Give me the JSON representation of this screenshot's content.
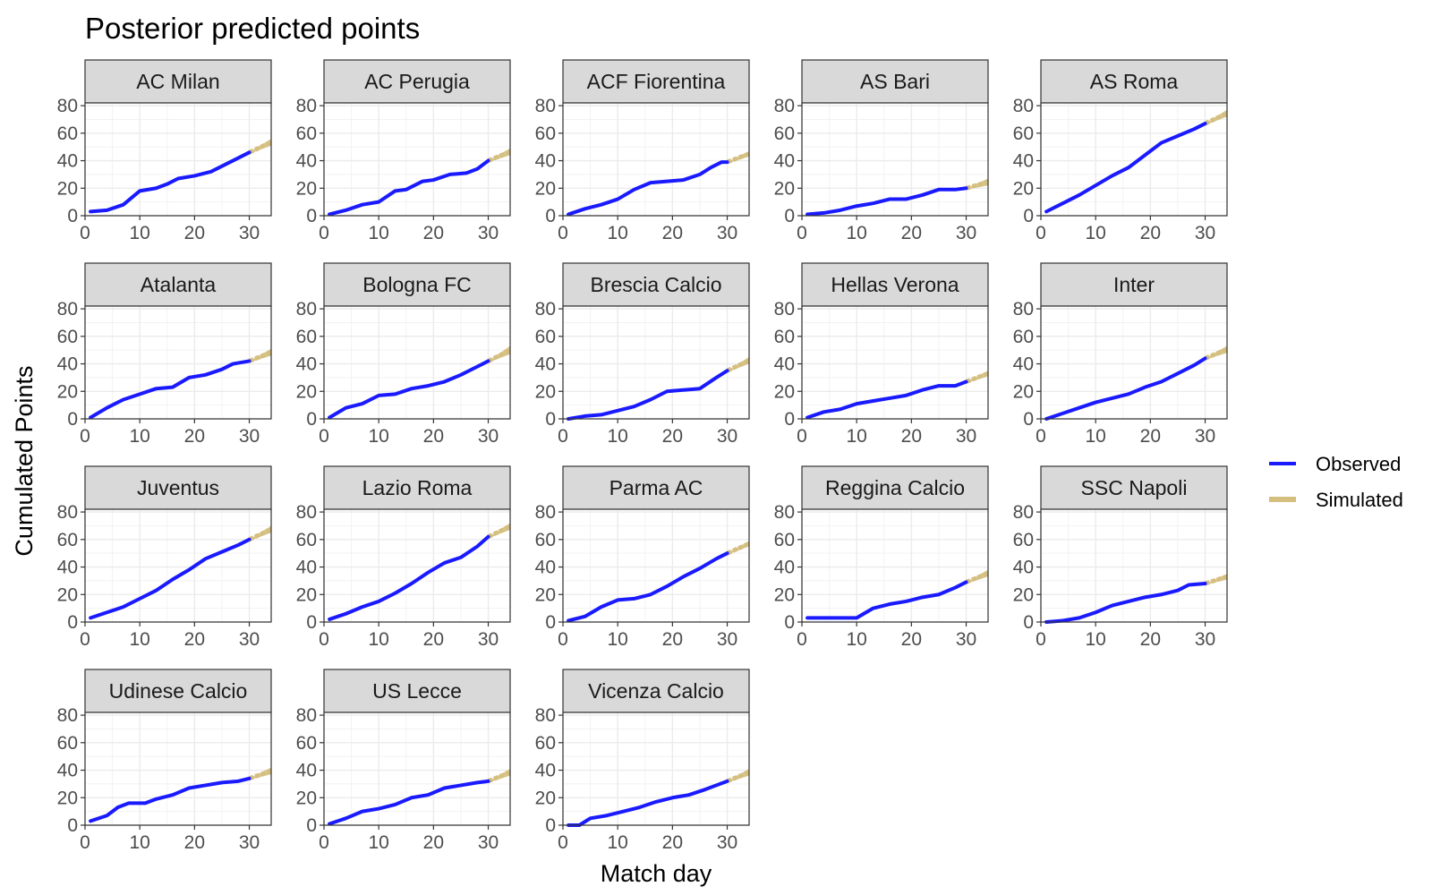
{
  "chart_data": {
    "type": "line",
    "title": "Posterior predicted points",
    "xlabel": "Match day",
    "ylabel": "Cumulated Points",
    "x_ticks": [
      0,
      10,
      20,
      30
    ],
    "y_ticks": [
      0,
      20,
      40,
      60,
      80
    ],
    "xlim": [
      0,
      34
    ],
    "ylim": [
      0,
      82
    ],
    "grid": true,
    "legend": {
      "placement": "right",
      "entries": [
        {
          "name": "Observed",
          "color": "#1a1aff"
        },
        {
          "name": "Simulated",
          "color": "#d4bf7f"
        }
      ]
    },
    "observed_days": [
      1,
      30
    ],
    "simulated_days": [
      30,
      34
    ],
    "facets": [
      {
        "team": "AC Milan",
        "observed": [
          [
            1,
            3
          ],
          [
            4,
            4
          ],
          [
            7,
            8
          ],
          [
            10,
            18
          ],
          [
            13,
            20
          ],
          [
            15,
            23
          ],
          [
            17,
            27
          ],
          [
            20,
            29
          ],
          [
            23,
            32
          ],
          [
            25,
            36
          ],
          [
            27,
            40
          ],
          [
            30,
            46
          ]
        ],
        "simulated_end": [
          51,
          56
        ]
      },
      {
        "team": "AC Perugia",
        "observed": [
          [
            1,
            1
          ],
          [
            4,
            4
          ],
          [
            7,
            8
          ],
          [
            10,
            10
          ],
          [
            13,
            18
          ],
          [
            15,
            19
          ],
          [
            18,
            25
          ],
          [
            20,
            26
          ],
          [
            23,
            30
          ],
          [
            26,
            31
          ],
          [
            28,
            34
          ],
          [
            30,
            40
          ]
        ],
        "simulated_end": [
          44,
          49
        ]
      },
      {
        "team": "ACF Fiorentina",
        "observed": [
          [
            1,
            1
          ],
          [
            4,
            5
          ],
          [
            7,
            8
          ],
          [
            10,
            12
          ],
          [
            13,
            19
          ],
          [
            16,
            24
          ],
          [
            19,
            25
          ],
          [
            22,
            26
          ],
          [
            25,
            30
          ],
          [
            27,
            35
          ],
          [
            29,
            39
          ],
          [
            30,
            39
          ]
        ],
        "simulated_end": [
          43,
          47
        ]
      },
      {
        "team": "AS Bari",
        "observed": [
          [
            1,
            1
          ],
          [
            4,
            2
          ],
          [
            7,
            4
          ],
          [
            10,
            7
          ],
          [
            13,
            9
          ],
          [
            16,
            12
          ],
          [
            19,
            12
          ],
          [
            22,
            15
          ],
          [
            25,
            19
          ],
          [
            28,
            19
          ],
          [
            30,
            20
          ]
        ],
        "simulated_end": [
          22,
          27
        ]
      },
      {
        "team": "AS Roma",
        "observed": [
          [
            1,
            3
          ],
          [
            4,
            9
          ],
          [
            7,
            15
          ],
          [
            10,
            22
          ],
          [
            13,
            29
          ],
          [
            16,
            35
          ],
          [
            19,
            44
          ],
          [
            22,
            53
          ],
          [
            25,
            58
          ],
          [
            28,
            63
          ],
          [
            30,
            67
          ]
        ],
        "simulated_end": [
          72,
          77
        ]
      },
      {
        "team": "Atalanta",
        "observed": [
          [
            1,
            1
          ],
          [
            4,
            8
          ],
          [
            7,
            14
          ],
          [
            10,
            18
          ],
          [
            13,
            22
          ],
          [
            16,
            23
          ],
          [
            19,
            30
          ],
          [
            22,
            32
          ],
          [
            25,
            36
          ],
          [
            27,
            40
          ],
          [
            30,
            42
          ]
        ],
        "simulated_end": [
          46,
          51
        ]
      },
      {
        "team": "Bologna FC",
        "observed": [
          [
            1,
            1
          ],
          [
            4,
            8
          ],
          [
            7,
            11
          ],
          [
            10,
            17
          ],
          [
            13,
            18
          ],
          [
            16,
            22
          ],
          [
            19,
            24
          ],
          [
            22,
            27
          ],
          [
            25,
            32
          ],
          [
            28,
            38
          ],
          [
            30,
            42
          ]
        ],
        "simulated_end": [
          47,
          53
        ]
      },
      {
        "team": "Brescia Calcio",
        "observed": [
          [
            1,
            0
          ],
          [
            4,
            2
          ],
          [
            7,
            3
          ],
          [
            10,
            6
          ],
          [
            13,
            9
          ],
          [
            16,
            14
          ],
          [
            19,
            20
          ],
          [
            22,
            21
          ],
          [
            25,
            22
          ],
          [
            28,
            30
          ],
          [
            30,
            35
          ]
        ],
        "simulated_end": [
          40,
          45
        ]
      },
      {
        "team": "Hellas Verona",
        "observed": [
          [
            1,
            1
          ],
          [
            4,
            5
          ],
          [
            7,
            7
          ],
          [
            10,
            11
          ],
          [
            13,
            13
          ],
          [
            16,
            15
          ],
          [
            19,
            17
          ],
          [
            22,
            21
          ],
          [
            25,
            24
          ],
          [
            28,
            24
          ],
          [
            30,
            27
          ]
        ],
        "simulated_end": [
          31,
          35
        ]
      },
      {
        "team": "Inter",
        "observed": [
          [
            1,
            0
          ],
          [
            4,
            4
          ],
          [
            7,
            8
          ],
          [
            10,
            12
          ],
          [
            13,
            15
          ],
          [
            16,
            18
          ],
          [
            19,
            23
          ],
          [
            22,
            27
          ],
          [
            25,
            33
          ],
          [
            28,
            39
          ],
          [
            30,
            44
          ]
        ],
        "simulated_end": [
          48,
          53
        ]
      },
      {
        "team": "Juventus",
        "observed": [
          [
            1,
            3
          ],
          [
            4,
            7
          ],
          [
            7,
            11
          ],
          [
            10,
            17
          ],
          [
            13,
            23
          ],
          [
            16,
            31
          ],
          [
            19,
            38
          ],
          [
            22,
            46
          ],
          [
            25,
            51
          ],
          [
            28,
            56
          ],
          [
            30,
            60
          ]
        ],
        "simulated_end": [
          65,
          70
        ]
      },
      {
        "team": "Lazio Roma",
        "observed": [
          [
            1,
            2
          ],
          [
            4,
            6
          ],
          [
            7,
            11
          ],
          [
            10,
            15
          ],
          [
            13,
            21
          ],
          [
            16,
            28
          ],
          [
            19,
            36
          ],
          [
            22,
            43
          ],
          [
            25,
            47
          ],
          [
            28,
            55
          ],
          [
            30,
            62
          ]
        ],
        "simulated_end": [
          67,
          72
        ]
      },
      {
        "team": "Parma AC",
        "observed": [
          [
            1,
            1
          ],
          [
            4,
            4
          ],
          [
            7,
            11
          ],
          [
            10,
            16
          ],
          [
            13,
            17
          ],
          [
            16,
            20
          ],
          [
            19,
            26
          ],
          [
            22,
            33
          ],
          [
            25,
            39
          ],
          [
            28,
            46
          ],
          [
            30,
            50
          ]
        ],
        "simulated_end": [
          55,
          59
        ]
      },
      {
        "team": "Reggina Calcio",
        "observed": [
          [
            1,
            3
          ],
          [
            4,
            3
          ],
          [
            7,
            3
          ],
          [
            10,
            3
          ],
          [
            13,
            10
          ],
          [
            16,
            13
          ],
          [
            19,
            15
          ],
          [
            22,
            18
          ],
          [
            25,
            20
          ],
          [
            28,
            25
          ],
          [
            30,
            29
          ]
        ],
        "simulated_end": [
          33,
          38
        ]
      },
      {
        "team": "SSC Napoli",
        "observed": [
          [
            1,
            0
          ],
          [
            4,
            1
          ],
          [
            7,
            3
          ],
          [
            10,
            7
          ],
          [
            13,
            12
          ],
          [
            16,
            15
          ],
          [
            19,
            18
          ],
          [
            22,
            20
          ],
          [
            25,
            23
          ],
          [
            27,
            27
          ],
          [
            30,
            28
          ]
        ],
        "simulated_end": [
          31,
          35
        ]
      },
      {
        "team": "Udinese Calcio",
        "observed": [
          [
            1,
            3
          ],
          [
            4,
            7
          ],
          [
            6,
            13
          ],
          [
            8,
            16
          ],
          [
            11,
            16
          ],
          [
            13,
            19
          ],
          [
            16,
            22
          ],
          [
            19,
            27
          ],
          [
            22,
            29
          ],
          [
            25,
            31
          ],
          [
            28,
            32
          ],
          [
            30,
            34
          ]
        ],
        "simulated_end": [
          37,
          42
        ]
      },
      {
        "team": "US Lecce",
        "observed": [
          [
            1,
            1
          ],
          [
            4,
            5
          ],
          [
            7,
            10
          ],
          [
            10,
            12
          ],
          [
            13,
            15
          ],
          [
            16,
            20
          ],
          [
            19,
            22
          ],
          [
            22,
            27
          ],
          [
            25,
            29
          ],
          [
            28,
            31
          ],
          [
            30,
            32
          ]
        ],
        "simulated_end": [
          36,
          41
        ]
      },
      {
        "team": "Vicenza Calcio",
        "observed": [
          [
            1,
            0
          ],
          [
            3,
            0
          ],
          [
            5,
            5
          ],
          [
            8,
            7
          ],
          [
            11,
            10
          ],
          [
            14,
            13
          ],
          [
            17,
            17
          ],
          [
            20,
            20
          ],
          [
            23,
            22
          ],
          [
            26,
            26
          ],
          [
            28,
            29
          ],
          [
            30,
            32
          ]
        ],
        "simulated_end": [
          36,
          41
        ]
      }
    ]
  }
}
